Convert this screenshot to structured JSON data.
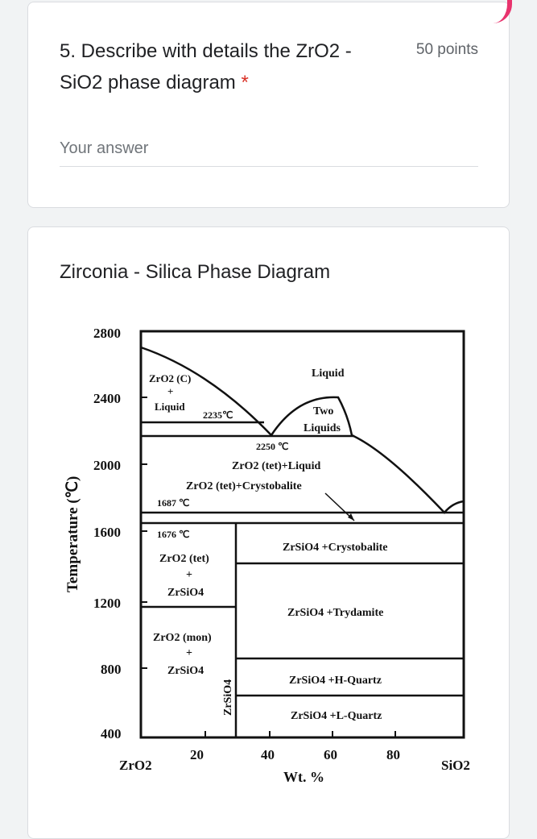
{
  "question": {
    "title": "5. Describe with details the ZrO2 - SiO2 phase diagram",
    "required_mark": "*",
    "points": "50 points",
    "answer_placeholder": "Your answer"
  },
  "section": {
    "title": "Zirconia - Silica Phase Diagram"
  },
  "chart_data": {
    "type": "diagram",
    "ylabel": "Temperature (℃)",
    "xlabel": "Wt. %",
    "x_left_label": "ZrO2",
    "x_right_label": "SiO2",
    "x_ticks": [
      "20",
      "40",
      "60",
      "80"
    ],
    "y_ticks": [
      "2800",
      "2400",
      "2000",
      "1600",
      "1200",
      "800",
      "400"
    ],
    "region_labels": {
      "zro2c_line1": "ZrO2 (C)",
      "plus1": "+",
      "liquid_left": "Liquid",
      "eutectic_temp": "2235℃",
      "liquid": "Liquid",
      "two": "Two",
      "liquids": "Liquids",
      "temp_2250": "2250 ℃",
      "tet_liquid": "ZrO2 (tet)+Liquid",
      "tet_cristo": "ZrO2 (tet)+Crystobalite",
      "temp_1687": "1687 ℃",
      "temp_1676": "1676 ℃",
      "zro2_tet": "ZrO2 (tet)",
      "plus2": "+",
      "zrsio4_a": "ZrSiO4",
      "zrsio4_cristo": "ZrSiO4 +Crystobalite",
      "zrsio4_tryd": "ZrSiO4 +Trydamite",
      "zro2_mon": "ZrO2 (mon)",
      "plus3": "+",
      "zrsio4_b": "ZrSiO4",
      "zrsio4_vertical": "ZrSiO4",
      "zrsio4_hq": "ZrSiO4 +H-Quartz",
      "zrsio4_lq": "ZrSiO4 +L-Quartz"
    }
  }
}
